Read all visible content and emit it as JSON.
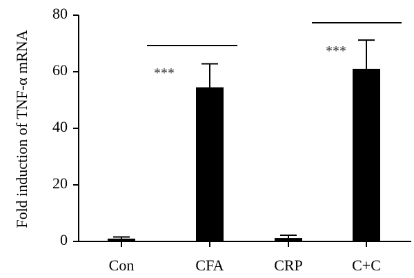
{
  "chart_data": {
    "type": "bar",
    "categories": [
      "Con",
      "CFA",
      "CRP",
      "C+C"
    ],
    "values": [
      1.0,
      54.5,
      1.2,
      61.0
    ],
    "error_upper": [
      1.6,
      62.8,
      2.2,
      71.2
    ],
    "ylabel": "Fold induction of TNF-α mRNA",
    "ylim": [
      0,
      80
    ],
    "yticks": [
      0,
      20,
      40,
      60,
      80
    ],
    "bar_color": "#000000",
    "grid": false,
    "annotations": [
      {
        "text": "***",
        "category": "CFA"
      },
      {
        "text": "***",
        "category": "C+C"
      }
    ]
  }
}
